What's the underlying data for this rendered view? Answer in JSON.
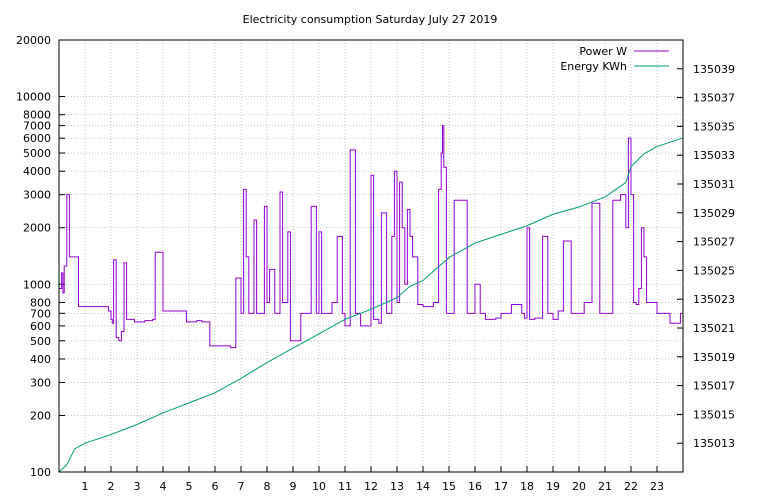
{
  "chart_data": {
    "type": "line",
    "title": "Electricity consumption Saturday July 27 2019",
    "xlabel": "",
    "ylabel": "",
    "xlim": [
      0,
      24
    ],
    "ylim": [
      100,
      20000
    ],
    "y_scale": "log",
    "y2lim": [
      135011,
      135041
    ],
    "x_ticks": [
      1,
      2,
      3,
      4,
      5,
      6,
      7,
      8,
      9,
      10,
      11,
      12,
      13,
      14,
      15,
      16,
      17,
      18,
      19,
      20,
      21,
      22,
      23
    ],
    "y_ticks": [
      {
        "v": 20000,
        "label": "20000"
      },
      {
        "v": 10000,
        "label": "10000"
      },
      {
        "v": 8000,
        "label": "8000"
      },
      {
        "v": 7000,
        "label": "7000"
      },
      {
        "v": 6000,
        "label": "6000"
      },
      {
        "v": 5000,
        "label": "5000"
      },
      {
        "v": 4000,
        "label": "4000"
      },
      {
        "v": 3000,
        "label": "3000"
      },
      {
        "v": 2000,
        "label": "2000"
      },
      {
        "v": 1000,
        "label": "1000"
      },
      {
        "v": 800,
        "label": "800"
      },
      {
        "v": 700,
        "label": "700"
      },
      {
        "v": 600,
        "label": "600"
      },
      {
        "v": 500,
        "label": "500"
      },
      {
        "v": 400,
        "label": "400"
      },
      {
        "v": 300,
        "label": "300"
      },
      {
        "v": 200,
        "label": "200"
      },
      {
        "v": 100,
        "label": "100"
      }
    ],
    "y2_ticks": [
      135013,
      135015,
      135017,
      135019,
      135021,
      135023,
      135025,
      135027,
      135029,
      135031,
      135033,
      135035,
      135037,
      135039
    ],
    "grid": true,
    "legend_position": "top-right",
    "series": [
      {
        "name": "Power W",
        "axis": "left",
        "color": "#9400d3",
        "x": [
          0,
          0.1,
          0.15,
          0.2,
          0.3,
          0.35,
          0.4,
          0.75,
          0.8,
          0.9,
          1.5,
          1.9,
          2.0,
          2.05,
          2.1,
          2.2,
          2.3,
          2.4,
          2.5,
          2.6,
          2.9,
          3.3,
          3.6,
          3.7,
          4.0,
          4.2,
          4.9,
          5.3,
          5.5,
          5.8,
          6.1,
          6.6,
          6.8,
          7.0,
          7.1,
          7.2,
          7.3,
          7.5,
          7.6,
          7.8,
          7.9,
          8.0,
          8.1,
          8.3,
          8.5,
          8.6,
          8.8,
          8.9,
          9.1,
          9.3,
          9.5,
          9.7,
          9.9,
          10.0,
          10.1,
          10.3,
          10.5,
          10.7,
          10.9,
          11.0,
          11.2,
          11.4,
          11.6,
          11.8,
          12.0,
          12.1,
          12.3,
          12.4,
          12.6,
          12.8,
          12.9,
          13.0,
          13.1,
          13.2,
          13.3,
          13.4,
          13.5,
          13.6,
          13.8,
          14.0,
          14.2,
          14.4,
          14.6,
          14.7,
          14.75,
          14.8,
          14.9,
          15.0,
          15.2,
          15.4,
          15.7,
          16.0,
          16.2,
          16.4,
          16.8,
          17.0,
          17.4,
          17.8,
          17.9,
          18.0,
          18.1,
          18.3,
          18.6,
          18.8,
          19.0,
          19.2,
          19.4,
          19.7,
          20.0,
          20.2,
          20.5,
          20.8,
          20.9,
          21.0,
          21.3,
          21.6,
          21.8,
          21.9,
          22.0,
          22.1,
          22.2,
          22.3,
          22.4,
          22.5,
          22.6,
          22.8,
          23.0,
          23.2,
          23.5,
          23.9
        ],
        "values": [
          950,
          1150,
          900,
          1250,
          3000,
          3000,
          1400,
          760,
          760,
          760,
          760,
          720,
          650,
          620,
          1350,
          520,
          500,
          560,
          1300,
          650,
          630,
          640,
          650,
          1480,
          720,
          720,
          630,
          640,
          630,
          470,
          470,
          460,
          1080,
          700,
          3200,
          1400,
          700,
          2200,
          700,
          700,
          2600,
          800,
          1200,
          700,
          3100,
          800,
          1900,
          500,
          500,
          700,
          700,
          2600,
          700,
          1900,
          700,
          700,
          800,
          1800,
          700,
          600,
          5200,
          700,
          600,
          600,
          3800,
          650,
          620,
          2400,
          700,
          1800,
          4000,
          800,
          3500,
          2000,
          1000,
          2500,
          1800,
          1400,
          780,
          760,
          760,
          800,
          3200,
          5000,
          7000,
          4200,
          700,
          700,
          2800,
          2800,
          700,
          1000,
          700,
          650,
          660,
          700,
          780,
          700,
          660,
          2000,
          650,
          660,
          1800,
          700,
          650,
          720,
          1700,
          700,
          700,
          800,
          2700,
          700,
          700,
          700,
          2800,
          3000,
          2000,
          6000,
          3000,
          800,
          780,
          950,
          2000,
          1400,
          800,
          800,
          700,
          700,
          620,
          700
        ]
      },
      {
        "name": "Energy KWh",
        "axis": "right",
        "color": "#009e73",
        "x": [
          0,
          0.3,
          0.6,
          1,
          2,
          3,
          4,
          5,
          6,
          7,
          8,
          9,
          10,
          11,
          12,
          13,
          13.5,
          14,
          15,
          16,
          17,
          18,
          19,
          20,
          21,
          21.8,
          22,
          22.5,
          23,
          24
        ],
        "values": [
          135011.0,
          135011.5,
          135012.6,
          135013.0,
          135013.6,
          135014.3,
          135015.1,
          135015.8,
          135016.5,
          135017.5,
          135018.6,
          135019.6,
          135020.6,
          135021.6,
          135022.3,
          135023.1,
          135023.9,
          135024.3,
          135025.9,
          135026.9,
          135027.5,
          135028.1,
          135028.9,
          135029.4,
          135030.1,
          135031.1,
          135032.2,
          135033.1,
          135033.6,
          135034.2
        ]
      }
    ]
  }
}
